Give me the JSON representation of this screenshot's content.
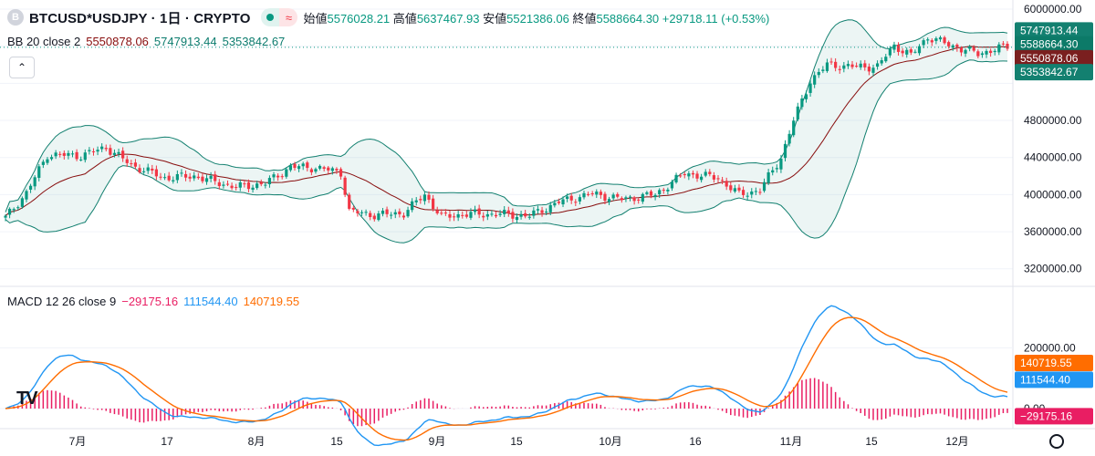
{
  "header": {
    "symbol_icon": "B",
    "title": "BTCUSD*USDJPY · 1日 · CRYPTO",
    "open_label": "始値",
    "open": "5576028.21",
    "high_label": "高値",
    "high": "5637467.93",
    "low_label": "安値",
    "low": "5521386.06",
    "close_label": "終値",
    "close": "5588664.30",
    "change": "+29718.11 (+0.53%)"
  },
  "bb_legend": {
    "name": "BB 20 close 2",
    "basis": "5550878.06",
    "upper": "5747913.44",
    "lower": "5353842.67"
  },
  "macd_legend": {
    "name": "MACD 12 26 close 9",
    "hist": "−29175.16",
    "macd": "111544.40",
    "signal": "140719.55"
  },
  "price_axis": {
    "ticks": [
      "6000000.00",
      "4800000.00",
      "4400000.00",
      "4000000.00",
      "3600000.00",
      "3200000.00"
    ],
    "badges": [
      {
        "text": "5747913.44",
        "color": "#138070",
        "value": 5747913.44
      },
      {
        "text": "5588664.30",
        "color": "#0c7a68",
        "value": 5588664.3
      },
      {
        "text": "5550878.06",
        "color": "#7a1f1f",
        "value": 5550878.06
      },
      {
        "text": "5353842.67",
        "color": "#138070",
        "value": 5353842.67
      }
    ]
  },
  "macd_axis": {
    "ticks": [
      "200000.00",
      "0.00"
    ],
    "badges": [
      {
        "text": "140719.55",
        "color": "#ff6d00",
        "value": 140719.55
      },
      {
        "text": "111544.40",
        "color": "#2196f3",
        "value": 111544.4
      },
      {
        "text": "−29175.16",
        "color": "#e91e63",
        "value": -29175.16
      }
    ]
  },
  "time_axis": {
    "labels": [
      "7月",
      "17",
      "8月",
      "15",
      "9月",
      "15",
      "10月",
      "16",
      "11月",
      "15",
      "12月"
    ]
  },
  "chart_data": [
    {
      "type": "candlestick",
      "title": "BTCUSD*USDJPY · 1日 · CRYPTO",
      "ylim": [
        3050000,
        6020000
      ],
      "x_label_dates": [
        "7月",
        "17",
        "8月",
        "15",
        "9月",
        "15",
        "10月",
        "16",
        "11月",
        "15",
        "12月"
      ],
      "close_keypoints": [
        [
          0,
          3750000
        ],
        [
          5,
          4020000
        ],
        [
          10,
          4430000
        ],
        [
          18,
          4420000
        ],
        [
          24,
          4510000
        ],
        [
          30,
          4320000
        ],
        [
          38,
          4180000
        ],
        [
          45,
          4200000
        ],
        [
          55,
          4080000
        ],
        [
          62,
          4120000
        ],
        [
          68,
          4300000
        ],
        [
          74,
          4290000
        ],
        [
          80,
          4240000
        ],
        [
          82,
          3820000
        ],
        [
          88,
          3780000
        ],
        [
          95,
          3800000
        ],
        [
          100,
          4000000
        ],
        [
          104,
          3760000
        ],
        [
          110,
          3790000
        ],
        [
          118,
          3790000
        ],
        [
          125,
          3770000
        ],
        [
          132,
          3920000
        ],
        [
          140,
          4010000
        ],
        [
          147,
          3950000
        ],
        [
          155,
          4000000
        ],
        [
          162,
          4230000
        ],
        [
          170,
          4180000
        ],
        [
          175,
          4000000
        ],
        [
          180,
          4050000
        ],
        [
          185,
          4400000
        ],
        [
          188,
          4800000
        ],
        [
          192,
          5230000
        ],
        [
          196,
          5400000
        ],
        [
          202,
          5380000
        ],
        [
          208,
          5380000
        ],
        [
          212,
          5610000
        ],
        [
          216,
          5500000
        ],
        [
          220,
          5700000
        ],
        [
          226,
          5600000
        ],
        [
          232,
          5520000
        ],
        [
          238,
          5588664
        ]
      ],
      "last": {
        "open": 5576028.21,
        "high": 5637467.93,
        "low": 5521386.06,
        "close": 5588664.3,
        "change": "+29718.11 (+0.53%)"
      },
      "overlays": [
        {
          "name": "BB basis",
          "last": 5550878.06,
          "color": "#880e0e"
        },
        {
          "name": "BB upper",
          "last": 5747913.44,
          "color": "#138070"
        },
        {
          "name": "BB lower",
          "last": 5353842.67,
          "color": "#138070"
        }
      ]
    },
    {
      "type": "macd",
      "series": [
        {
          "name": "MACD",
          "color": "#2196f3",
          "last": 111544.4
        },
        {
          "name": "Signal",
          "color": "#ff6d00",
          "last": 140719.55
        },
        {
          "name": "Histogram",
          "color": "#e91e63",
          "last": -29175.16
        }
      ],
      "ylim": [
        -60000,
        390000
      ]
    }
  ]
}
